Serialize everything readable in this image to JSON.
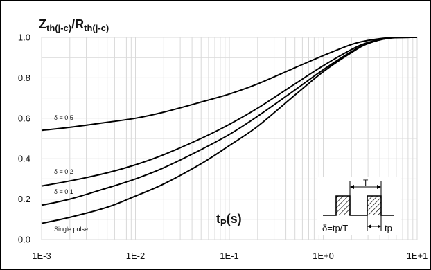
{
  "chart_data": {
    "type": "line",
    "title_main": "Z",
    "title_main_sub": "th(j-c)",
    "title_sep": "/R",
    "title_den_sub": "th(j-c)",
    "xlabel_main": "t",
    "xlabel_sub": "P",
    "xlabel_unit": "(s)",
    "xscale": "log",
    "xlim": [
      0.001,
      10
    ],
    "ylim": [
      0,
      1.0
    ],
    "x_ticks": [
      0.001,
      0.01,
      0.1,
      1,
      10
    ],
    "x_tick_labels": [
      "1E-3",
      "1E-2",
      "1E-1",
      "1E+0",
      "1E+1"
    ],
    "y_ticks": [
      0,
      0.2,
      0.4,
      0.6,
      0.8,
      1.0
    ],
    "y_tick_labels": [
      "0.0",
      "0.2",
      "0.4",
      "0.6",
      "0.8",
      "1.0"
    ],
    "grid": true,
    "series": [
      {
        "name": "δ = 0.5",
        "x": [
          0.001,
          0.002,
          0.005,
          0.01,
          0.02,
          0.05,
          0.1,
          0.2,
          0.5,
          1,
          2,
          3,
          5,
          10
        ],
        "y": [
          0.54,
          0.555,
          0.58,
          0.6,
          0.63,
          0.68,
          0.72,
          0.77,
          0.85,
          0.91,
          0.965,
          0.985,
          0.998,
          1.0
        ]
      },
      {
        "name": "δ = 0.2",
        "x": [
          0.001,
          0.002,
          0.005,
          0.01,
          0.02,
          0.05,
          0.1,
          0.2,
          0.5,
          1,
          2,
          3,
          5,
          10
        ],
        "y": [
          0.265,
          0.29,
          0.33,
          0.37,
          0.42,
          0.5,
          0.57,
          0.65,
          0.77,
          0.86,
          0.94,
          0.975,
          0.997,
          1.0
        ]
      },
      {
        "name": "δ = 0.1",
        "x": [
          0.001,
          0.002,
          0.005,
          0.01,
          0.02,
          0.05,
          0.1,
          0.2,
          0.5,
          1,
          2,
          3,
          5,
          10
        ],
        "y": [
          0.17,
          0.2,
          0.255,
          0.3,
          0.355,
          0.445,
          0.52,
          0.61,
          0.74,
          0.84,
          0.93,
          0.97,
          0.996,
          1.0
        ]
      },
      {
        "name": "Single pulse",
        "x": [
          0.001,
          0.002,
          0.005,
          0.01,
          0.02,
          0.05,
          0.1,
          0.2,
          0.5,
          1,
          2,
          3,
          5,
          10
        ],
        "y": [
          0.08,
          0.11,
          0.16,
          0.215,
          0.275,
          0.375,
          0.465,
          0.56,
          0.715,
          0.83,
          0.925,
          0.97,
          0.996,
          1.0
        ]
      }
    ],
    "series_label_text": [
      "δ = 0.5",
      "δ = 0.2",
      "δ = 0.1",
      "Single pulse"
    ],
    "inset": {
      "period_label": "T",
      "duty_formula": "δ=tp/T",
      "pulse_label": "tp"
    }
  }
}
